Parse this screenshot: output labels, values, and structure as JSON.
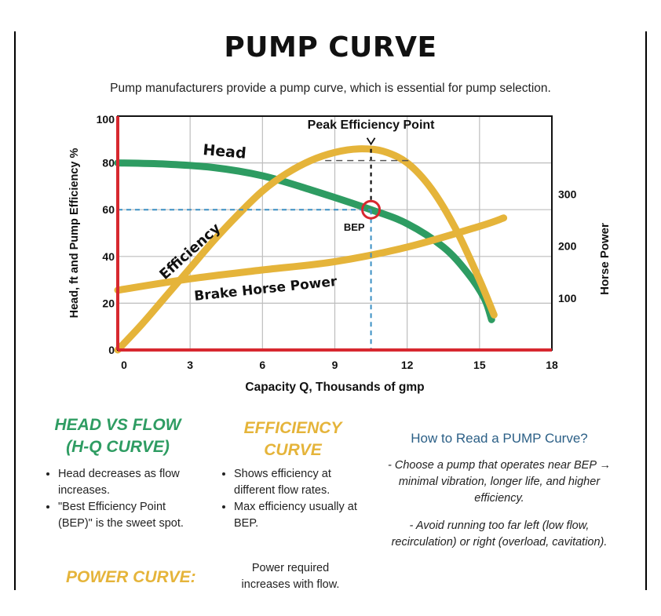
{
  "title": "PUMP CURVE",
  "subtitle": "Pump manufacturers provide a pump curve, which is essential for pump selection.",
  "chart_data": {
    "type": "line",
    "xlabel": "Capacity Q, Thousands of gmp",
    "ylabel": "Head, ft and Pump Efficiency %",
    "ylabel_right": "Horse Power",
    "xlim": [
      0,
      18
    ],
    "ylim": [
      0,
      100
    ],
    "ylim_right": [
      0,
      450
    ],
    "x_ticks": [
      "0",
      "3",
      "6",
      "9",
      "12",
      "15",
      "18"
    ],
    "y_ticks": [
      "0",
      "20",
      "40",
      "60",
      "80",
      "100"
    ],
    "y_ticks_right": [
      "100",
      "200",
      "300"
    ],
    "grid": true,
    "series": [
      {
        "name": "Head",
        "color": "#2e9c62",
        "axis": "left",
        "points": [
          [
            0,
            80
          ],
          [
            2,
            79.5
          ],
          [
            4,
            78
          ],
          [
            6,
            74.5
          ],
          [
            8,
            68.5
          ],
          [
            10.5,
            60
          ],
          [
            12,
            54
          ],
          [
            13.5,
            44
          ],
          [
            14.5,
            33
          ],
          [
            15.2,
            22
          ],
          [
            15.5,
            13
          ]
        ]
      },
      {
        "name": "Efficiency",
        "color": "#e5b43a",
        "axis": "left",
        "points": [
          [
            0,
            0
          ],
          [
            1,
            11
          ],
          [
            2,
            23
          ],
          [
            3,
            35
          ],
          [
            4,
            47
          ],
          [
            5,
            58
          ],
          [
            6,
            68
          ],
          [
            7,
            75.5
          ],
          [
            8,
            81
          ],
          [
            9,
            84.5
          ],
          [
            10,
            86
          ],
          [
            11,
            85
          ],
          [
            12,
            80
          ],
          [
            13,
            69
          ],
          [
            14,
            52
          ],
          [
            15,
            30
          ],
          [
            15.6,
            15
          ]
        ]
      },
      {
        "name": "Brake Horse Power",
        "color": "#e5b43a",
        "axis": "right",
        "points": [
          [
            0,
            115
          ],
          [
            3,
            137
          ],
          [
            6,
            154
          ],
          [
            9,
            170
          ],
          [
            12,
            198
          ],
          [
            15,
            238
          ],
          [
            16,
            254
          ]
        ]
      }
    ],
    "annotations": {
      "peak_label": "Peak Efficiency Point",
      "bep_label": "BEP",
      "bep": [
        10.5,
        60
      ],
      "head_label": "Head",
      "efficiency_label": "Efficiency",
      "bhp_label": "Brake Horse Power"
    },
    "colors": {
      "axis_left": "#d7282f",
      "frame": "#111111",
      "grid": "#bdbdbd",
      "dash": "#3b8fc4",
      "bep_circle": "#d7282f"
    }
  },
  "sections": {
    "head_flow": {
      "title_line1": "HEAD VS FLOW",
      "title_line2": "(H-Q CURVE)",
      "bullets": [
        "Head decreases as flow increases.",
        "\"Best Efficiency Point (BEP)\" is the sweet spot."
      ]
    },
    "efficiency": {
      "title_line1": "EFFICIENCY",
      "title_line2": "CURVE",
      "bullets": [
        "Shows efficiency at different flow rates.",
        "Max efficiency usually at BEP."
      ]
    },
    "power": {
      "title": "POWER CURVE:",
      "text": "Power required increases with flow."
    },
    "howto": {
      "title": "How to Read a PUMP Curve?",
      "para1": "- Choose a pump that operates near BEP → minimal vibration, longer life, and higher efficiency.",
      "para2": "- Avoid running too far left (low flow, recirculation) or right (overload, cavitation)."
    }
  }
}
